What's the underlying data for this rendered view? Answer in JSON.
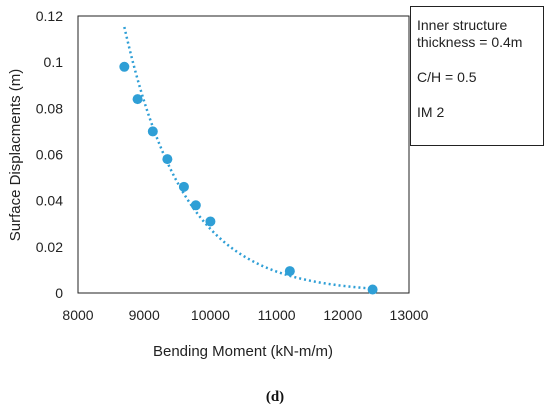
{
  "chart_data": {
    "type": "scatter",
    "xlabel": "Bending Moment (kN-m/m)",
    "ylabel": "Surface Displacments (m)",
    "xlim": [
      8000,
      13000
    ],
    "ylim": [
      0,
      0.12
    ],
    "x_ticks": [
      "8000",
      "9000",
      "10000",
      "11000",
      "12000",
      "13000"
    ],
    "y_ticks": [
      "0",
      "0.02",
      "0.04",
      "0.06",
      "0.08",
      "0.1",
      "0.12"
    ],
    "grid": false,
    "trendline": {
      "type": "exponential",
      "style": "dotted",
      "x_range": [
        8700,
        12400
      ]
    },
    "series": [
      {
        "color": "#2f9fd6",
        "points": [
          {
            "x": 8700,
            "y": 0.098
          },
          {
            "x": 8900,
            "y": 0.084
          },
          {
            "x": 9130,
            "y": 0.07
          },
          {
            "x": 9350,
            "y": 0.058
          },
          {
            "x": 9600,
            "y": 0.046
          },
          {
            "x": 9780,
            "y": 0.038
          },
          {
            "x": 10000,
            "y": 0.031
          },
          {
            "x": 11200,
            "y": 0.0095
          },
          {
            "x": 12450,
            "y": 0.0015
          }
        ]
      }
    ]
  },
  "annotation": {
    "line1": "Inner structure",
    "line2": "thickness = 0.4m",
    "line3": "C/H = 0.5",
    "line4": "IM 2"
  },
  "caption": "(d)"
}
